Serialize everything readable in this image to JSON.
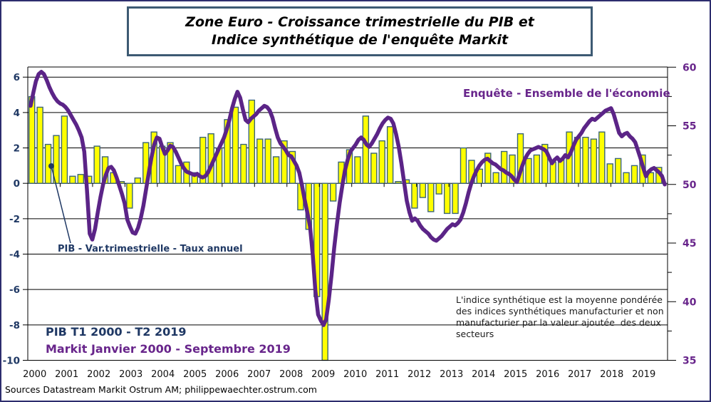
{
  "title": {
    "line1": "Zone Euro - Croissance trimestrielle du PIB et",
    "line2": "Indice synthétique de l'enquête Markit"
  },
  "labels": {
    "survey_label": "Enquête - Ensemble de l'économie",
    "gdp_label": "PIB - Var.trimestrielle - Taux annuel",
    "range_gdp": "PIB T1 2000 - T2 2019",
    "range_markit": "Markit Janvier 2000 - Septembre 2019",
    "annotation": "L'indice synthétique est la moyenne pondérée des indices synthétiques manufacturier et non manufacturier par la valeur ajoutée  des deux secteurs",
    "source": "Sources Datastream Markit Ostrum AM; philippewaechter.ostrum.com"
  },
  "colors": {
    "bar_fill": "#ffff00",
    "bar_stroke": "#3a6577",
    "line_purple": "#5b2487",
    "navy_text": "#1f3864",
    "purple_text": "#68258b",
    "grid": "#000000",
    "outer_border": "#2d2d6e",
    "title_border": "#3d5a73"
  },
  "chart_data": {
    "type": "bar+line combo",
    "title": "Zone Euro - Croissance trimestrielle du PIB et Indice synthétique de l'enquête Markit",
    "x_axis": {
      "labels": [
        "2000",
        "2001",
        "2002",
        "2003",
        "2004",
        "2005",
        "2006",
        "2007",
        "2008",
        "2009",
        "2010",
        "2011",
        "2012",
        "2013",
        "2014",
        "2015",
        "2016",
        "2017",
        "2018",
        "2019"
      ],
      "range_time": [
        2000.0,
        2019.75
      ]
    },
    "left_axis": {
      "ticks": [
        6,
        4,
        2,
        0,
        -2,
        -4,
        -6,
        -8,
        -10
      ],
      "range": [
        -10,
        6.6
      ],
      "grid": true,
      "series_label": "PIB - Var.trimestrielle - Taux annuel"
    },
    "right_axis": {
      "ticks": [
        60,
        55,
        50,
        45,
        40,
        35
      ],
      "minor_ticks": [
        57.5,
        52.5,
        47.5,
        42.5,
        37.5
      ],
      "range": [
        35,
        60.1
      ],
      "series_label": "Enquête - Ensemble de l'économie"
    },
    "series": [
      {
        "name": "PIB - Var.trimestrielle - Taux annuel",
        "type": "bar",
        "axis": "left",
        "frequency": "quarterly",
        "start": "2000Q1",
        "end": "2019Q2",
        "values": [
          4.9,
          4.3,
          2.2,
          2.7,
          3.8,
          0.4,
          0.5,
          0.4,
          2.1,
          1.5,
          0.6,
          0.1,
          -1.4,
          0.3,
          2.3,
          2.9,
          2.1,
          2.3,
          1.0,
          1.2,
          0.6,
          2.6,
          2.8,
          2.0,
          3.6,
          4.3,
          2.2,
          4.7,
          2.5,
          2.5,
          1.5,
          2.4,
          1.8,
          -1.5,
          -2.6,
          -6.4,
          -11.8,
          -1.0,
          1.2,
          1.9,
          1.5,
          3.8,
          1.7,
          2.4,
          3.2,
          0.1,
          0.2,
          -1.4,
          -0.8,
          -1.6,
          -0.6,
          -1.7,
          -1.7,
          2.0,
          1.3,
          0.8,
          1.7,
          0.6,
          1.8,
          1.6,
          2.8,
          1.4,
          1.6,
          2.2,
          1.2,
          1.4,
          2.9,
          2.6,
          2.6,
          2.5,
          2.9,
          1.1,
          1.4,
          0.6,
          1.0,
          1.6,
          0.6,
          0.9
        ]
      },
      {
        "name": "Enquête - Ensemble de l'économie",
        "type": "line",
        "axis": "right",
        "frequency": "monthly",
        "start": "2000-01",
        "end": "2019-09",
        "values": [
          56.7,
          57.8,
          58.8,
          59.4,
          59.6,
          59.4,
          58.9,
          58.3,
          57.8,
          57.4,
          57.1,
          56.9,
          56.8,
          56.6,
          56.3,
          55.9,
          55.5,
          55.1,
          54.6,
          54.0,
          52.8,
          49.5,
          45.8,
          45.3,
          46.2,
          47.6,
          48.9,
          50.0,
          50.8,
          51.4,
          51.5,
          51.2,
          50.6,
          49.9,
          49.2,
          48.4,
          47.0,
          46.4,
          45.9,
          45.8,
          46.3,
          47.1,
          48.2,
          49.6,
          51.0,
          52.3,
          53.4,
          54.0,
          53.9,
          53.2,
          52.6,
          52.9,
          53.3,
          53.2,
          52.8,
          52.3,
          51.8,
          51.4,
          51.1,
          51.0,
          50.9,
          50.8,
          50.9,
          50.7,
          50.6,
          50.7,
          51.0,
          51.5,
          52.0,
          52.5,
          53.0,
          53.5,
          54.0,
          54.7,
          55.5,
          56.5,
          57.3,
          57.9,
          57.4,
          56.4,
          55.5,
          55.3,
          55.6,
          55.8,
          56.0,
          56.3,
          56.5,
          56.7,
          56.6,
          56.3,
          55.7,
          54.8,
          54.0,
          53.5,
          53.2,
          52.9,
          52.5,
          52.4,
          52.0,
          51.6,
          51.0,
          49.9,
          48.7,
          47.6,
          46.4,
          44.0,
          40.9,
          38.9,
          38.4,
          38.0,
          38.5,
          40.2,
          42.3,
          44.6,
          46.6,
          48.4,
          49.9,
          51.2,
          52.1,
          52.8,
          53.1,
          53.4,
          53.8,
          54.0,
          53.8,
          53.4,
          53.2,
          53.5,
          53.9,
          54.3,
          54.8,
          55.2,
          55.5,
          55.7,
          55.6,
          55.2,
          54.3,
          53.2,
          51.8,
          50.2,
          48.6,
          47.6,
          46.9,
          47.1,
          46.9,
          46.5,
          46.2,
          46.0,
          45.8,
          45.5,
          45.3,
          45.2,
          45.4,
          45.6,
          45.9,
          46.2,
          46.4,
          46.6,
          46.5,
          46.7,
          47.0,
          47.6,
          48.4,
          49.3,
          50.1,
          50.7,
          51.2,
          51.6,
          51.9,
          52.1,
          52.2,
          52.0,
          51.8,
          51.7,
          51.5,
          51.3,
          51.2,
          51.0,
          50.9,
          50.7,
          50.4,
          50.2,
          50.9,
          51.6,
          52.2,
          52.6,
          52.9,
          53.0,
          53.1,
          53.2,
          53.1,
          53.0,
          52.8,
          52.3,
          51.8,
          52.1,
          52.3,
          52.0,
          52.2,
          52.5,
          52.3,
          52.7,
          53.3,
          53.8,
          54.1,
          54.4,
          54.8,
          55.1,
          55.4,
          55.6,
          55.5,
          55.7,
          55.9,
          56.1,
          56.3,
          56.4,
          56.5,
          56.0,
          55.2,
          54.4,
          54.1,
          54.3,
          54.4,
          54.1,
          53.9,
          53.6,
          52.9,
          52.2,
          51.4,
          50.7,
          51.1,
          51.3,
          51.4,
          51.2,
          51.0,
          50.7,
          50.0
        ]
      }
    ],
    "annotations": [
      "Enquête - Ensemble de l'économie",
      "PIB - Var.trimestrielle - Taux annuel",
      "PIB T1 2000 - T2 2019",
      "Markit Janvier 2000 - Septembre 2019",
      "L'indice synthétique est la moyenne pondérée des indices synthétiques manufacturier et non manufacturier par la valeur ajoutée  des deux secteurs"
    ]
  }
}
